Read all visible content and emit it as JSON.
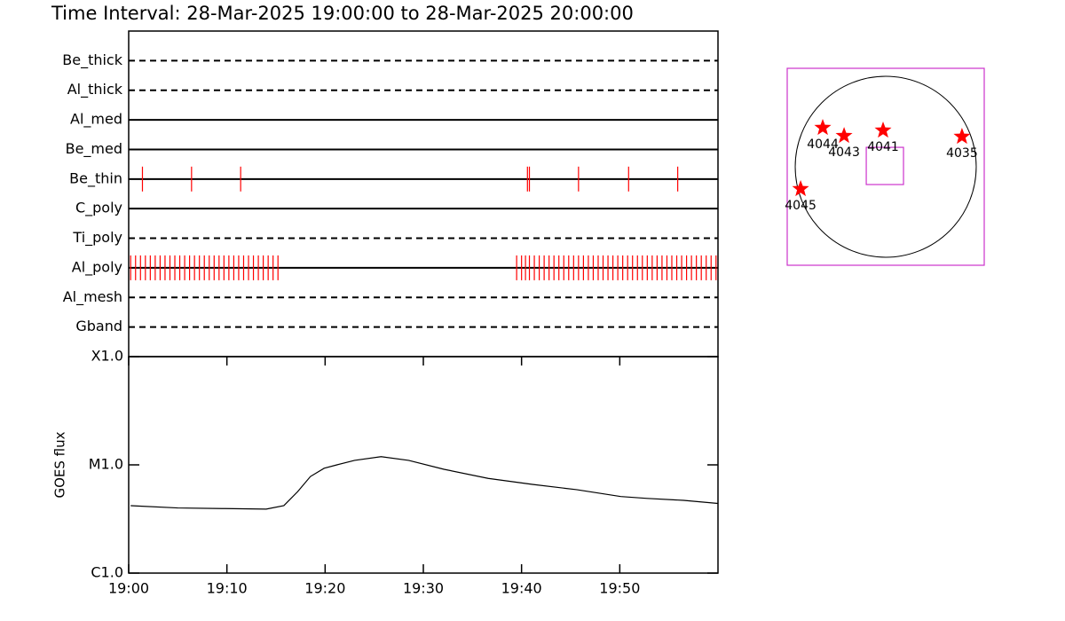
{
  "chart_data": [
    {
      "type": "timeline",
      "title": "Time Interval: 28-Mar-2025 19:00:00 to 28-Mar-2025 20:00:00",
      "categories": [
        "Be_thick",
        "Al_thick",
        "Al_med",
        "Be_med",
        "Be_thin",
        "C_poly",
        "Ti_poly",
        "Al_poly",
        "Al_mesh",
        "Gband"
      ],
      "line_styles": [
        "dashed",
        "dashed",
        "solid",
        "solid",
        "solid",
        "solid",
        "dashed",
        "solid",
        "dashed",
        "dashed"
      ],
      "event_color": "#ff0000",
      "xlim": [
        0,
        60
      ],
      "events": [
        [],
        [],
        [],
        [],
        [
          1.4,
          6.4,
          11.4,
          40.6,
          40.8,
          45.8,
          50.9,
          55.9
        ],
        [],
        [],
        [
          0.2,
          0.7,
          1.2,
          1.7,
          2.2,
          2.7,
          3.2,
          3.7,
          4.2,
          4.7,
          5.2,
          5.7,
          6.2,
          6.7,
          7.2,
          7.7,
          8.2,
          8.7,
          9.2,
          9.7,
          10.2,
          10.7,
          11.2,
          11.7,
          12.2,
          12.7,
          13.2,
          13.7,
          14.2,
          14.7,
          15.2,
          39.5,
          40.0,
          40.4,
          40.8,
          41.3,
          41.8,
          42.3,
          42.8,
          43.3,
          43.8,
          44.3,
          44.8,
          45.3,
          45.8,
          46.3,
          46.8,
          47.3,
          47.8,
          48.3,
          48.8,
          49.3,
          49.8,
          50.3,
          50.8,
          51.3,
          51.8,
          52.3,
          52.8,
          53.3,
          53.8,
          54.3,
          54.8,
          55.3,
          55.8,
          56.3,
          56.8,
          57.3,
          57.8,
          58.3,
          58.8,
          59.3,
          59.8
        ],
        [],
        []
      ]
    },
    {
      "type": "line",
      "y_label": "GOES flux",
      "log_scale": true,
      "color": "#000000",
      "x": [
        0.2,
        5,
        9.5,
        14,
        15.8,
        17.2,
        18.5,
        19.9,
        21.2,
        23,
        25.7,
        28.5,
        32.1,
        36.6,
        41.1,
        45.6,
        50.1,
        52.8,
        56.5,
        60
      ],
      "values": [
        4.2e-06,
        4e-06,
        3.95e-06,
        3.9e-06,
        4.2e-06,
        5.65e-06,
        7.8e-06,
        9.3e-06,
        1e-05,
        1.1e-05,
        1.19e-05,
        1.1e-05,
        9.1e-06,
        7.5e-06,
        6.6e-06,
        5.9e-06,
        5.1e-06,
        4.9e-06,
        4.7e-06,
        4.4e-06
      ],
      "xlim": [
        0,
        60
      ],
      "xticks": [
        {
          "value": 0,
          "label": "19:00"
        },
        {
          "value": 10,
          "label": "19:10"
        },
        {
          "value": 20,
          "label": "19:20"
        },
        {
          "value": 30,
          "label": "19:30"
        },
        {
          "value": 40,
          "label": "19:40"
        },
        {
          "value": 50,
          "label": "19:50"
        }
      ],
      "ylim": [
        1e-06,
        0.0001
      ],
      "yticks": [
        {
          "value": 1e-06,
          "label": "C1.0"
        },
        {
          "value": 1e-05,
          "label": "M1.0"
        },
        {
          "value": 0.0001,
          "label": "X1.0"
        }
      ]
    },
    {
      "type": "map",
      "frame_color": "#cc33cc",
      "marker_color": "#ff0000",
      "xlim": [
        -1045,
        1045
      ],
      "ylim": [
        -1045,
        1045
      ],
      "solar_radius": 960,
      "fov": {
        "x": -9,
        "y": 9,
        "size": 395
      },
      "regions": [
        {
          "label": "4044",
          "x": -668,
          "y": 414
        },
        {
          "label": "4043",
          "x": -442,
          "y": 329
        },
        {
          "label": "4041",
          "x": -28,
          "y": 386
        },
        {
          "label": "4035",
          "x": 809,
          "y": 320
        },
        {
          "label": "4045",
          "x": -903,
          "y": -235
        }
      ]
    }
  ]
}
